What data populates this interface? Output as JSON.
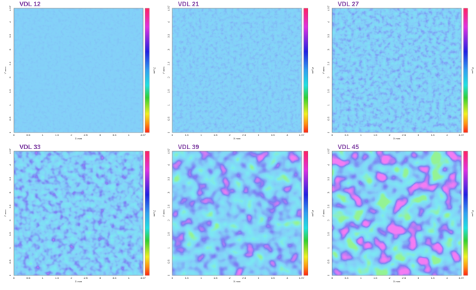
{
  "panels": [
    {
      "title": "VDL 12"
    },
    {
      "title": "VDL 21"
    },
    {
      "title": "VDL 27"
    },
    {
      "title": "VDL 33"
    },
    {
      "title": "VDL 39"
    },
    {
      "title": "VDL 45"
    }
  ],
  "x_axis_label": "X mm",
  "y_axis_label": "Y mm",
  "z_axis_label": "Z µm",
  "x_ticks": [
    "0",
    "0.5",
    "1",
    "1.5",
    "2",
    "2.5",
    "3",
    "3.5",
    "4",
    "4.97"
  ],
  "y_ticks": [
    "0",
    "0.5",
    "1",
    "1.5",
    "2",
    "2.5",
    "3",
    "3.5",
    "4",
    "4.97"
  ]
}
